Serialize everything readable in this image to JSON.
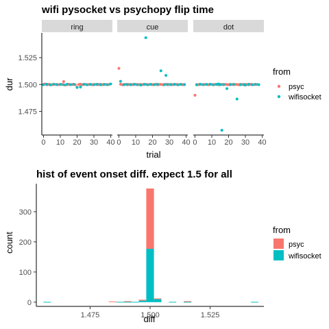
{
  "colors": {
    "psyc": "#F8766D",
    "wifisocket": "#00BFC4",
    "strip": "#D9D9D9"
  },
  "chart_data": [
    {
      "type": "scatter",
      "title": "wifi pysocket vs psychopy flip time",
      "xlabel": "trial",
      "ylabel": "dur",
      "facets": [
        "ring",
        "cue",
        "dot"
      ],
      "xlim": [
        -1,
        41
      ],
      "ylim": [
        1.453,
        1.548
      ],
      "x_ticks": [
        0,
        10,
        20,
        30,
        40
      ],
      "x_tick_labels": [
        "0",
        "10",
        "20",
        "30",
        "40"
      ],
      "y_ticks": [
        1.475,
        1.5,
        1.525
      ],
      "y_tick_labels": [
        "1.475",
        "1.500",
        "1.525"
      ],
      "legend": {
        "title": "from",
        "position": "right",
        "entries": [
          "psyc",
          "wifisocket"
        ]
      },
      "series": [
        {
          "name": "psyc",
          "points": {
            "ring": [
              [
                0,
                1.5
              ],
              [
                1,
                1.5005
              ],
              [
                2,
                1.4998
              ],
              [
                3,
                1.5002
              ],
              [
                4,
                1.5
              ],
              [
                5,
                1.4997
              ],
              [
                6,
                1.5003
              ],
              [
                7,
                1.5
              ],
              [
                8,
                1.5001
              ],
              [
                9,
                1.4999
              ],
              [
                10,
                1.5
              ],
              [
                11,
                1.5002
              ],
              [
                12,
                1.5027
              ],
              [
                13,
                1.4995
              ],
              [
                14,
                1.5
              ],
              [
                15,
                1.5003
              ],
              [
                16,
                1.4998
              ],
              [
                17,
                1.5
              ],
              [
                18,
                1.5002
              ],
              [
                19,
                1.4998
              ],
              [
                20,
                1.4975
              ],
              [
                21,
                1.5
              ],
              [
                22,
                1.5003
              ],
              [
                23,
                1.4998
              ],
              [
                24,
                1.5
              ],
              [
                25,
                1.5001
              ],
              [
                26,
                1.4999
              ],
              [
                27,
                1.5
              ],
              [
                28,
                1.5002
              ],
              [
                29,
                1.4998
              ],
              [
                30,
                1.5
              ],
              [
                31,
                1.5001
              ],
              [
                32,
                1.4999
              ],
              [
                33,
                1.5
              ],
              [
                34,
                1.5002
              ],
              [
                35,
                1.4998
              ],
              [
                36,
                1.5
              ],
              [
                37,
                1.5001
              ],
              [
                38,
                1.4999
              ],
              [
                39,
                1.5
              ]
            ],
            "cue": [
              [
                0,
                1.515
              ],
              [
                1,
                1.5003
              ],
              [
                2,
                1.4998
              ],
              [
                3,
                1.5
              ],
              [
                4,
                1.5002
              ],
              [
                5,
                1.4998
              ],
              [
                6,
                1.5
              ],
              [
                7,
                1.5001
              ],
              [
                8,
                1.4999
              ],
              [
                9,
                1.5
              ],
              [
                10,
                1.5002
              ],
              [
                11,
                1.4998
              ],
              [
                12,
                1.5
              ],
              [
                13,
                1.5001
              ],
              [
                14,
                1.4999
              ],
              [
                15,
                1.5
              ],
              [
                16,
                1.5002
              ],
              [
                17,
                1.4998
              ],
              [
                18,
                1.5
              ],
              [
                19,
                1.5001
              ],
              [
                20,
                1.4999
              ],
              [
                21,
                1.5
              ],
              [
                22,
                1.5002
              ],
              [
                23,
                1.4998
              ],
              [
                24,
                1.5
              ],
              [
                25,
                1.5001
              ],
              [
                26,
                1.4999
              ],
              [
                27,
                1.5
              ],
              [
                28,
                1.5002
              ],
              [
                29,
                1.4998
              ],
              [
                30,
                1.5
              ],
              [
                31,
                1.5001
              ],
              [
                32,
                1.4999
              ],
              [
                33,
                1.5
              ],
              [
                34,
                1.5002
              ],
              [
                35,
                1.4998
              ],
              [
                36,
                1.5
              ],
              [
                37,
                1.5001
              ],
              [
                38,
                1.4999
              ],
              [
                39,
                1.5
              ]
            ],
            "dot": [
              [
                0,
                1.49
              ],
              [
                1,
                1.5
              ],
              [
                2,
                1.4998
              ],
              [
                3,
                1.5002
              ],
              [
                4,
                1.5
              ],
              [
                5,
                1.4999
              ],
              [
                6,
                1.5001
              ],
              [
                7,
                1.5
              ],
              [
                8,
                1.4998
              ],
              [
                9,
                1.5002
              ],
              [
                10,
                1.5
              ],
              [
                11,
                1.4999
              ],
              [
                12,
                1.5001
              ],
              [
                13,
                1.5
              ],
              [
                14,
                1.4998
              ],
              [
                15,
                1.5002
              ],
              [
                16,
                1.5
              ],
              [
                17,
                1.4999
              ],
              [
                18,
                1.5001
              ],
              [
                19,
                1.5
              ],
              [
                20,
                1.4998
              ],
              [
                21,
                1.5002
              ],
              [
                22,
                1.5
              ],
              [
                23,
                1.4999
              ],
              [
                24,
                1.5001
              ],
              [
                25,
                1.5
              ],
              [
                26,
                1.4998
              ],
              [
                27,
                1.5002
              ],
              [
                28,
                1.5
              ],
              [
                29,
                1.4999
              ],
              [
                30,
                1.5001
              ],
              [
                31,
                1.5
              ],
              [
                32,
                1.4998
              ],
              [
                33,
                1.5002
              ],
              [
                34,
                1.5
              ],
              [
                35,
                1.4999
              ],
              [
                36,
                1.5001
              ],
              [
                37,
                1.5
              ]
            ]
          }
        },
        {
          "name": "wifisocket",
          "points": {
            "ring": [
              [
                0,
                1.4998
              ],
              [
                2,
                1.5002
              ],
              [
                4,
                1.4997
              ],
              [
                6,
                1.5003
              ],
              [
                8,
                1.4999
              ],
              [
                10,
                1.5001
              ],
              [
                12,
                1.4998
              ],
              [
                14,
                1.5002
              ],
              [
                16,
                1.4999
              ],
              [
                18,
                1.5001
              ],
              [
                20,
                1.4972
              ],
              [
                22,
                1.4976
              ],
              [
                24,
                1.5002
              ],
              [
                26,
                1.4998
              ],
              [
                28,
                1.5001
              ],
              [
                30,
                1.4999
              ],
              [
                32,
                1.5002
              ],
              [
                34,
                1.4998
              ],
              [
                36,
                1.5001
              ],
              [
                38,
                1.4999
              ],
              [
                40,
                1.5005
              ]
            ],
            "cue": [
              [
                1,
                1.503
              ],
              [
                3,
                1.4998
              ],
              [
                5,
                1.5001
              ],
              [
                7,
                1.4998
              ],
              [
                9,
                1.5002
              ],
              [
                11,
                1.4999
              ],
              [
                13,
                1.4995
              ],
              [
                15,
                1.5002
              ],
              [
                16,
                1.5435
              ],
              [
                17,
                1.4998
              ],
              [
                19,
                1.5001
              ],
              [
                21,
                1.4999
              ],
              [
                23,
                1.5002
              ],
              [
                25,
                1.5128
              ],
              [
                27,
                1.4998
              ],
              [
                28,
                1.5085
              ],
              [
                29,
                1.5001
              ],
              [
                31,
                1.4999
              ],
              [
                33,
                1.5002
              ],
              [
                35,
                1.4998
              ],
              [
                37,
                1.5001
              ],
              [
                39,
                1.4999
              ]
            ],
            "dot": [
              [
                1,
                1.4997
              ],
              [
                3,
                1.5003
              ],
              [
                5,
                1.4999
              ],
              [
                7,
                1.5001
              ],
              [
                9,
                1.5003
              ],
              [
                11,
                1.4998
              ],
              [
                13,
                1.5002
              ],
              [
                14,
                1.5005
              ],
              [
                15,
                1.4998
              ],
              [
                16,
                1.4575
              ],
              [
                17,
                1.5
              ],
              [
                19,
                1.4962
              ],
              [
                21,
                1.4999
              ],
              [
                23,
                1.5001
              ],
              [
                25,
                1.4865
              ],
              [
                27,
                1.4998
              ],
              [
                29,
                1.5
              ],
              [
                30,
                1.4995
              ],
              [
                32,
                1.5002
              ],
              [
                34,
                1.4998
              ],
              [
                36,
                1.5001
              ],
              [
                38,
                1.4999
              ]
            ]
          }
        }
      ]
    },
    {
      "type": "bar",
      "subtype": "stacked-histogram",
      "title": "hist of event onset diff. expect 1.5 for all",
      "xlabel": "diff",
      "ylabel": "count",
      "xlim": [
        1.4526,
        1.5474
      ],
      "ylim": [
        -14,
        393
      ],
      "x_ticks": [
        1.475,
        1.5,
        1.525
      ],
      "x_tick_labels": [
        "1.475",
        "1.500",
        "1.525"
      ],
      "y_ticks": [
        0,
        100,
        200,
        300
      ],
      "y_tick_labels": [
        "0",
        "100",
        "200",
        "300"
      ],
      "legend": {
        "title": "from",
        "position": "right",
        "entries": [
          "psyc",
          "wifisocket"
        ]
      },
      "bins": [
        {
          "x0": 1.4556,
          "x1": 1.4587,
          "psyc": 0,
          "wifisocket": 1
        },
        {
          "x0": 1.4828,
          "x1": 1.486,
          "psyc": 2,
          "wifisocket": 0
        },
        {
          "x0": 1.486,
          "x1": 1.4891,
          "psyc": 0,
          "wifisocket": 1
        },
        {
          "x0": 1.4891,
          "x1": 1.4922,
          "psyc": 1,
          "wifisocket": 1
        },
        {
          "x0": 1.4922,
          "x1": 1.4953,
          "psyc": 0,
          "wifisocket": 1
        },
        {
          "x0": 1.4953,
          "x1": 1.4984,
          "psyc": 3,
          "wifisocket": 5
        },
        {
          "x0": 1.4984,
          "x1": 1.5016,
          "psyc": 200,
          "wifisocket": 177
        },
        {
          "x0": 1.5016,
          "x1": 1.5047,
          "psyc": 2,
          "wifisocket": 10
        },
        {
          "x0": 1.5078,
          "x1": 1.5109,
          "psyc": 0,
          "wifisocket": 1
        },
        {
          "x0": 1.514,
          "x1": 1.5172,
          "psyc": 1,
          "wifisocket": 1
        },
        {
          "x0": 1.542,
          "x1": 1.5451,
          "psyc": 0,
          "wifisocket": 1
        }
      ]
    }
  ]
}
